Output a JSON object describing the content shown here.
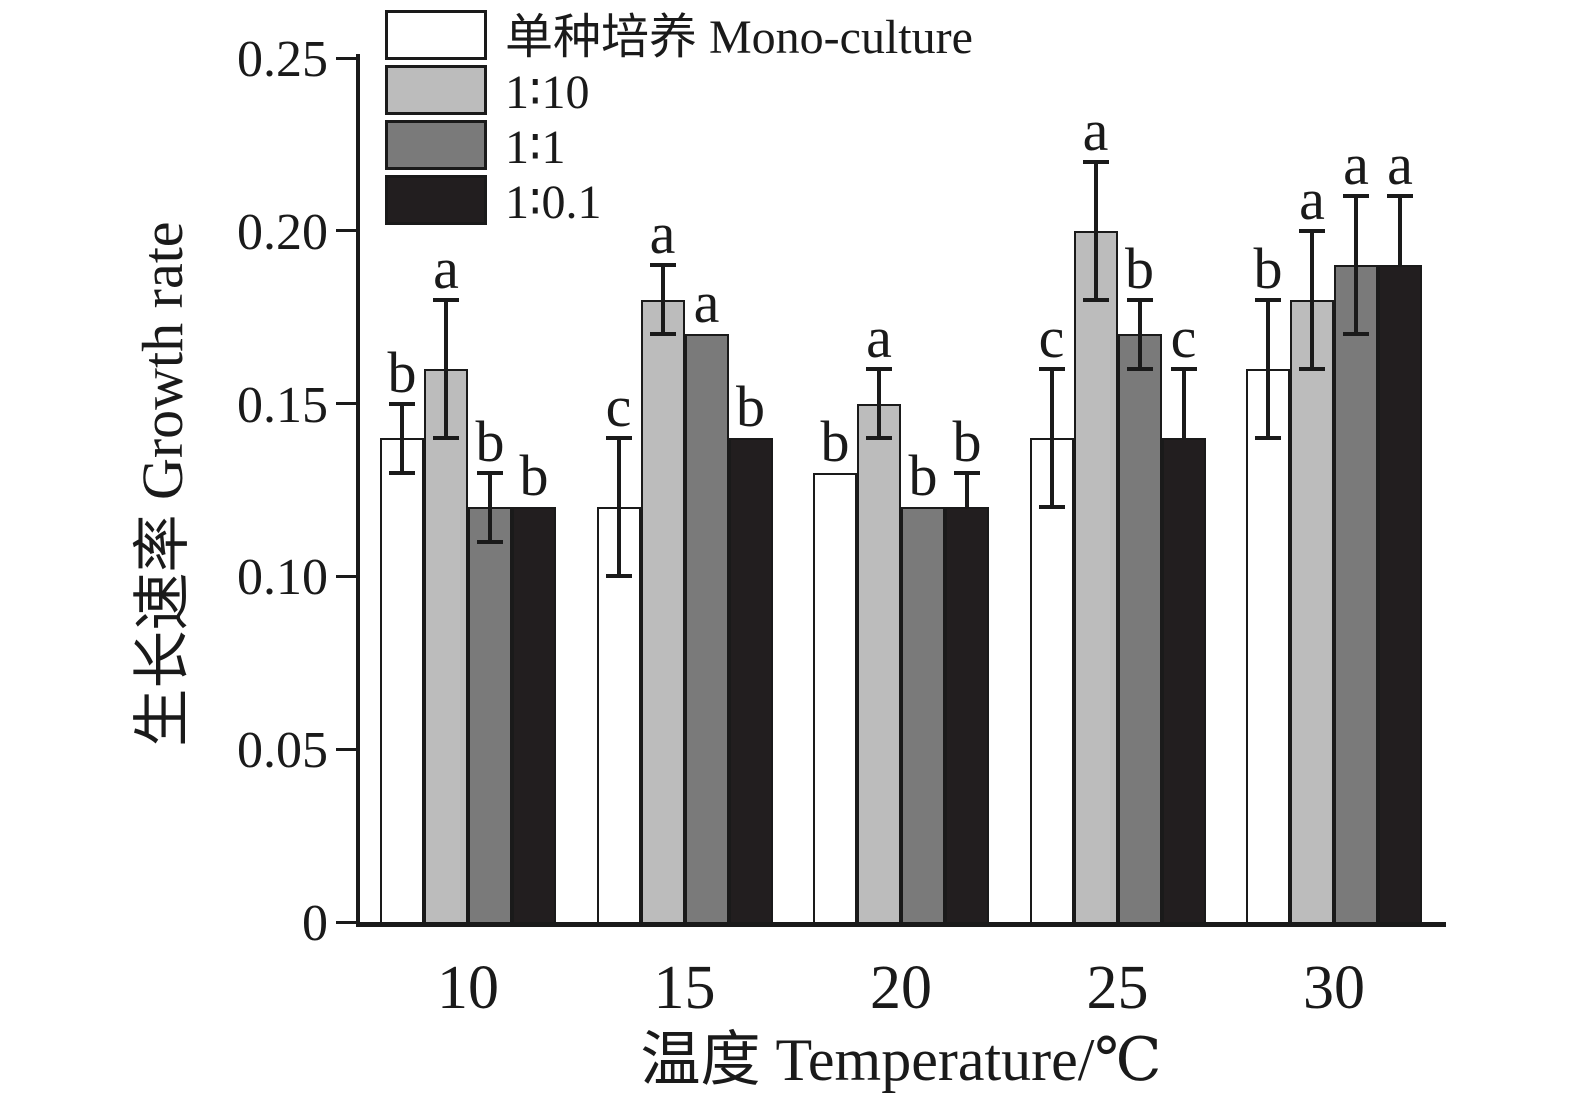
{
  "figure": {
    "kind": "scientific-grouped-bar-chart",
    "background": "#ffffff",
    "axis_color": "#1a1a1a"
  },
  "chart_data": {
    "type": "bar",
    "title": "",
    "xlabel": "温度 Temperature/℃",
    "ylabel": "生长速率 Growth rate",
    "ylim": [
      0,
      0.25
    ],
    "grid": false,
    "legend_position": "top-left",
    "yticks": [
      {
        "value": 0,
        "label": "0"
      },
      {
        "value": 0.05,
        "label": "0.05"
      },
      {
        "value": 0.1,
        "label": "0.10"
      },
      {
        "value": 0.15,
        "label": "0.15"
      },
      {
        "value": 0.2,
        "label": "0.20"
      },
      {
        "value": 0.25,
        "label": "0.25"
      }
    ],
    "categories": [
      "10",
      "15",
      "20",
      "25",
      "30"
    ],
    "series": [
      {
        "name": "单种培养 Mono-culture",
        "color": "#ffffff",
        "values": [
          0.14,
          0.12,
          0.13,
          0.14,
          0.16
        ],
        "err_up": [
          0.01,
          0.02,
          null,
          0.02,
          0.02
        ],
        "err_down": [
          0.01,
          0.02,
          null,
          0.02,
          0.02
        ],
        "letters": [
          "b",
          "c",
          "b",
          "c",
          "b"
        ]
      },
      {
        "name": "1∶10",
        "color": "#bcbcbc",
        "values": [
          0.16,
          0.18,
          0.15,
          0.2,
          0.18
        ],
        "err_up": [
          0.02,
          0.01,
          0.01,
          0.02,
          0.02
        ],
        "err_down": [
          0.02,
          0.01,
          0.01,
          0.02,
          0.02
        ],
        "letters": [
          "a",
          "a",
          "a",
          "a",
          "a"
        ]
      },
      {
        "name": "1∶1",
        "color": "#7a7a7a",
        "values": [
          0.12,
          0.17,
          0.12,
          0.17,
          0.19
        ],
        "err_up": [
          0.01,
          null,
          null,
          0.01,
          0.02
        ],
        "err_down": [
          0.01,
          null,
          null,
          0.01,
          0.02
        ],
        "letters": [
          "b",
          "a",
          "b",
          "b",
          "a"
        ]
      },
      {
        "name": "1∶0.1",
        "color": "#221e1f",
        "values": [
          0.12,
          0.14,
          0.12,
          0.14,
          0.19
        ],
        "err_up": [
          null,
          null,
          0.01,
          0.02,
          0.02
        ],
        "err_down": [
          null,
          null,
          null,
          null,
          null
        ],
        "letters": [
          "b",
          "b",
          "b",
          "c",
          "a"
        ]
      }
    ]
  }
}
